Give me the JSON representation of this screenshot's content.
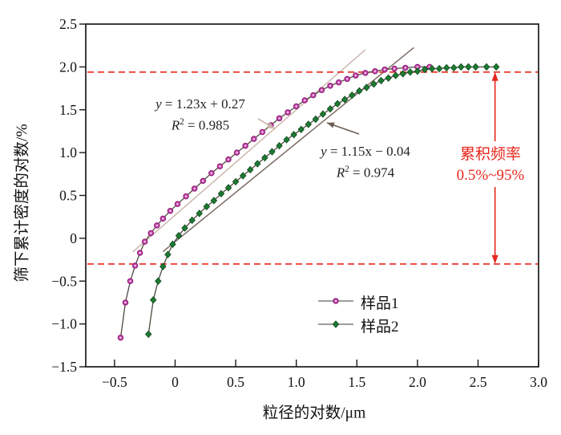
{
  "chart_data": {
    "type": "line",
    "title": "",
    "xlabel": "粒径的对数/μm",
    "ylabel": "筛下累计密度的对数/%",
    "xlim": [
      -0.74,
      3.0
    ],
    "ylim": [
      -1.5,
      2.5
    ],
    "grid": false,
    "x_tick_values": [
      -0.5,
      0,
      0.5,
      1.0,
      1.5,
      2.0,
      2.5,
      3.0
    ],
    "x_tick_labels": [
      "−0.5",
      "0",
      "0.5",
      "1.0",
      "1.5",
      "2.0",
      "2.5",
      "3.0"
    ],
    "y_tick_values": [
      2.5,
      2.0,
      1.5,
      1.0,
      0.5,
      0,
      -0.5,
      -1.0,
      -1.5
    ],
    "y_tick_labels": [
      "2.5",
      "2.0",
      "1.5",
      "1.0",
      "0.5",
      "0",
      "−0.5",
      "−1.0",
      "−1.5"
    ],
    "legend_position": "inside lower right",
    "series": [
      {
        "name": "样品1",
        "marker": "circle",
        "line_color": "#50483f",
        "marker_fill": "#c84aad",
        "marker_edge": "#8c1f78",
        "marker_center": "#f6e3f1",
        "points": [
          [
            -0.45,
            -1.16
          ],
          [
            -0.41,
            -0.75
          ],
          [
            -0.37,
            -0.5
          ],
          [
            -0.33,
            -0.32
          ],
          [
            -0.29,
            -0.17
          ],
          [
            -0.25,
            -0.04
          ],
          [
            -0.2,
            0.06
          ],
          [
            -0.15,
            0.15
          ],
          [
            -0.1,
            0.23
          ],
          [
            -0.04,
            0.32
          ],
          [
            0.02,
            0.4
          ],
          [
            0.09,
            0.49
          ],
          [
            0.16,
            0.58
          ],
          [
            0.23,
            0.67
          ],
          [
            0.3,
            0.76
          ],
          [
            0.37,
            0.84
          ],
          [
            0.44,
            0.92
          ],
          [
            0.51,
            1.0
          ],
          [
            0.58,
            1.08
          ],
          [
            0.65,
            1.16
          ],
          [
            0.72,
            1.24
          ],
          [
            0.79,
            1.32
          ],
          [
            0.86,
            1.4
          ],
          [
            0.93,
            1.47
          ],
          [
            1.0,
            1.54
          ],
          [
            1.07,
            1.61
          ],
          [
            1.14,
            1.67
          ],
          [
            1.21,
            1.73
          ],
          [
            1.28,
            1.78
          ],
          [
            1.35,
            1.82
          ],
          [
            1.42,
            1.86
          ],
          [
            1.49,
            1.9
          ],
          [
            1.57,
            1.93
          ],
          [
            1.65,
            1.95
          ],
          [
            1.73,
            1.97
          ],
          [
            1.81,
            1.98
          ],
          [
            1.9,
            1.99
          ],
          [
            2.0,
            2.0
          ],
          [
            2.1,
            2.0
          ]
        ]
      },
      {
        "name": "样品2",
        "marker": "diamond",
        "line_color": "#50483f",
        "marker_fill": "#1d7a32",
        "marker_edge": "#0f4a1c",
        "points": [
          [
            -0.22,
            -1.12
          ],
          [
            -0.18,
            -0.72
          ],
          [
            -0.14,
            -0.5
          ],
          [
            -0.1,
            -0.33
          ],
          [
            -0.06,
            -0.19
          ],
          [
            -0.02,
            -0.07
          ],
          [
            0.03,
            0.03
          ],
          [
            0.08,
            0.12
          ],
          [
            0.14,
            0.21
          ],
          [
            0.2,
            0.29
          ],
          [
            0.26,
            0.37
          ],
          [
            0.32,
            0.44
          ],
          [
            0.38,
            0.52
          ],
          [
            0.44,
            0.59
          ],
          [
            0.5,
            0.66
          ],
          [
            0.56,
            0.73
          ],
          [
            0.62,
            0.8
          ],
          [
            0.68,
            0.87
          ],
          [
            0.74,
            0.94
          ],
          [
            0.8,
            1.01
          ],
          [
            0.86,
            1.08
          ],
          [
            0.92,
            1.15
          ],
          [
            0.98,
            1.21
          ],
          [
            1.04,
            1.27
          ],
          [
            1.1,
            1.33
          ],
          [
            1.16,
            1.39
          ],
          [
            1.22,
            1.45
          ],
          [
            1.28,
            1.51
          ],
          [
            1.34,
            1.57
          ],
          [
            1.4,
            1.62
          ],
          [
            1.46,
            1.67
          ],
          [
            1.52,
            1.72
          ],
          [
            1.58,
            1.76
          ],
          [
            1.64,
            1.8
          ],
          [
            1.7,
            1.84
          ],
          [
            1.76,
            1.87
          ],
          [
            1.82,
            1.9
          ],
          [
            1.88,
            1.92
          ],
          [
            1.94,
            1.94
          ],
          [
            2.0,
            1.95
          ],
          [
            2.06,
            1.97
          ],
          [
            2.12,
            1.98
          ],
          [
            2.18,
            1.98
          ],
          [
            2.24,
            1.99
          ],
          [
            2.3,
            1.99
          ],
          [
            2.36,
            2.0
          ],
          [
            2.42,
            2.0
          ],
          [
            2.48,
            2.0
          ],
          [
            2.57,
            2.0
          ],
          [
            2.65,
            2.0
          ]
        ]
      }
    ],
    "fit_lines": [
      {
        "y_var": "y",
        "equation_rest": " = 1.23x + 0.27",
        "r2_pre": "R",
        "r2_sup": "2",
        "r2_post": " = 0.985",
        "slope": 1.23,
        "intercept": 0.27,
        "x_start": -0.35,
        "x_end": 1.57,
        "color": "#cbb6ac",
        "leader_arrow": {
          "from_x": 0.685,
          "from_y": 1.395,
          "to_x": 0.82,
          "to_y": 1.28,
          "color": "#c9b3a8"
        }
      },
      {
        "y_var": "y",
        "equation_rest": " = 1.15x − 0.04",
        "r2_pre": "R",
        "r2_sup": "2",
        "r2_post": " = 0.974",
        "slope": 1.15,
        "intercept": -0.04,
        "x_start": -0.1,
        "x_end": 1.97,
        "color": "#7c6c63",
        "leader_arrow": {
          "from_x": 1.518,
          "from_y": 1.217,
          "to_x": 1.253,
          "to_y": 1.348,
          "color": "#6b5d54"
        }
      }
    ],
    "reference_lines": {
      "color": "#e8271c",
      "upper_y": 1.94,
      "lower_y": -0.3,
      "dash": "8 5"
    },
    "range_annotation": {
      "x": 2.64,
      "top_y": 1.94,
      "bottom_y": -0.3,
      "line1": "累积频率",
      "line2": "0.5%~95%",
      "color": "#e8271c"
    }
  }
}
